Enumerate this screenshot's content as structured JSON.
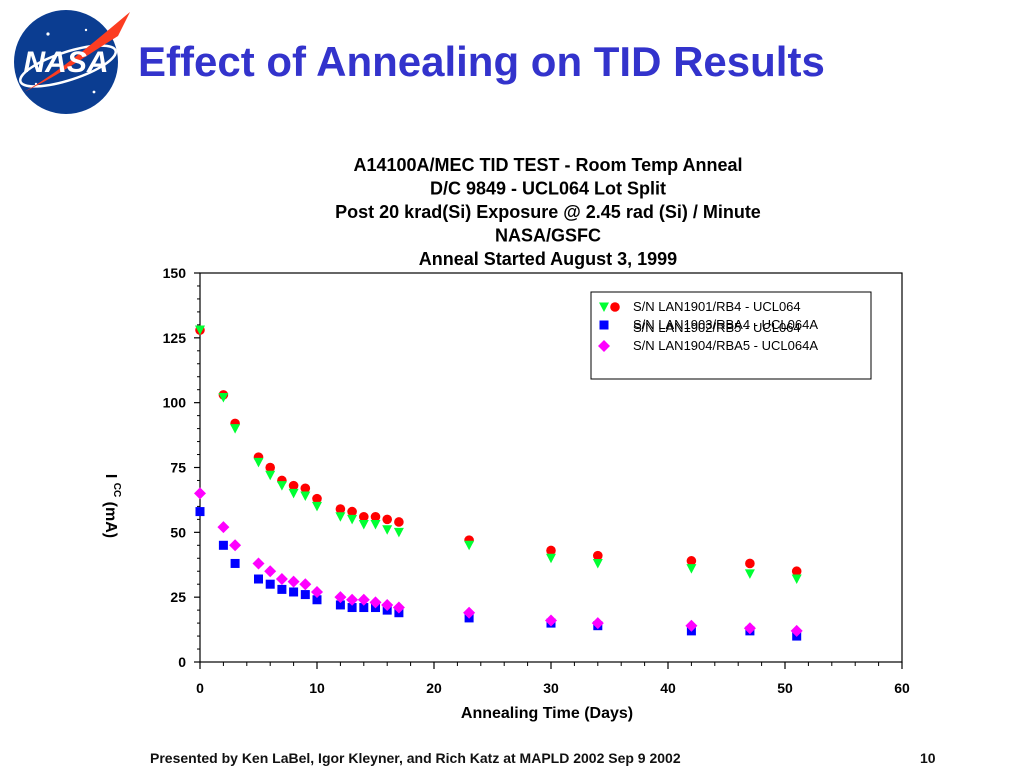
{
  "slide": {
    "title": "Effect of Annealing on TID Results",
    "logo_text": "NASA",
    "footer_text": "Presented by Ken LaBel, Igor Kleyner, and Rich Katz at MAPLD 2002 Sep 9 2002",
    "page_number": "10"
  },
  "colors": {
    "title": "#3333cc",
    "red": "#ff0000",
    "green": "#00ff33",
    "blue": "#0000ff",
    "magenta": "#ff00ff",
    "logo_blue": "#0b3d91"
  },
  "chart_data": {
    "type": "scatter",
    "title_lines": [
      "A14100A/MEC TID TEST - Room Temp Anneal",
      "D/C 9849 - UCL064 Lot Split",
      "Post 20 krad(Si) Exposure @ 2.45 rad (Si) / Minute",
      "NASA/GSFC",
      "Anneal Started August 3, 1999"
    ],
    "xlabel": "Annealing Time (Days)",
    "ylabel": "I",
    "ylabel_subscript": "CC",
    "ylabel_unit": "(mA)",
    "xlim": [
      0,
      60
    ],
    "ylim": [
      0,
      150
    ],
    "xticks": [
      "0",
      "10",
      "20",
      "30",
      "40",
      "50",
      "60"
    ],
    "yticks": [
      "0",
      "25",
      "50",
      "75",
      "100",
      "125",
      "150"
    ],
    "grid": false,
    "legend_position": "top-right",
    "series": [
      {
        "name": "S/N LAN1901/RB4 - UCL064",
        "marker": "circle",
        "color": "#ff0000",
        "x": [
          0,
          2,
          3,
          5,
          6,
          7,
          8,
          9,
          10,
          12,
          13,
          14,
          15,
          16,
          17,
          23,
          30,
          34,
          42,
          47,
          51
        ],
        "y": [
          128,
          103,
          92,
          79,
          75,
          70,
          68,
          67,
          63,
          59,
          58,
          56,
          56,
          55,
          54,
          47,
          43,
          41,
          39,
          38,
          35
        ]
      },
      {
        "name": "S/N LAN1902/RB5 - UCL064",
        "marker": "triangle-down",
        "color": "#00ff33",
        "x": [
          0,
          2,
          3,
          5,
          6,
          7,
          8,
          9,
          10,
          12,
          13,
          14,
          15,
          16,
          17,
          23,
          30,
          34,
          42,
          47,
          51
        ],
        "y": [
          128,
          102,
          90,
          77,
          72,
          68,
          65,
          64,
          60,
          56,
          55,
          53,
          53,
          51,
          50,
          45,
          40,
          38,
          36,
          34,
          32
        ]
      },
      {
        "name": "S/N LAN1903/RBA4 - UCL064A",
        "marker": "square",
        "color": "#0000ff",
        "x": [
          0,
          2,
          3,
          5,
          6,
          7,
          8,
          9,
          10,
          12,
          13,
          14,
          15,
          16,
          17,
          23,
          30,
          34,
          42,
          47,
          51
        ],
        "y": [
          58,
          45,
          38,
          32,
          30,
          28,
          27,
          26,
          24,
          22,
          21,
          21,
          21,
          20,
          19,
          17,
          15,
          14,
          12,
          12,
          10
        ]
      },
      {
        "name": "S/N LAN1904/RBA5 - UCL064A",
        "marker": "diamond",
        "color": "#ff00ff",
        "x": [
          0,
          2,
          3,
          5,
          6,
          7,
          8,
          9,
          10,
          12,
          13,
          14,
          15,
          16,
          17,
          23,
          30,
          34,
          42,
          47,
          51
        ],
        "y": [
          65,
          52,
          45,
          38,
          35,
          32,
          31,
          30,
          27,
          25,
          24,
          24,
          23,
          22,
          21,
          19,
          16,
          15,
          14,
          13,
          12
        ]
      }
    ]
  }
}
